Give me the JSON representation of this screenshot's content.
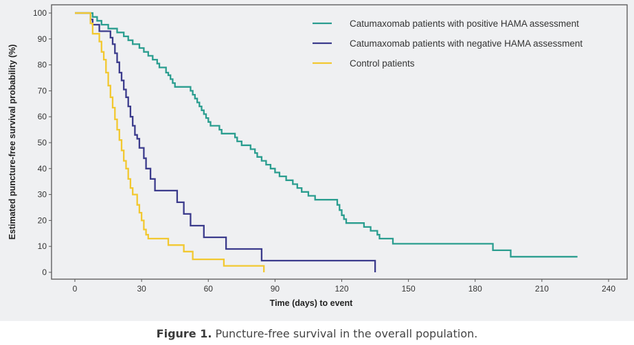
{
  "chart_data": {
    "type": "line",
    "subtype": "kaplan-meier step",
    "title": "",
    "xlabel": "Time (days) to event",
    "ylabel": "Estimated puncture-free survival probability (%)",
    "xlim": [
      0,
      240
    ],
    "ylim": [
      0,
      100
    ],
    "x_ticks": [
      0,
      30,
      60,
      90,
      120,
      150,
      180,
      210,
      240
    ],
    "y_ticks": [
      0,
      10,
      20,
      30,
      40,
      50,
      60,
      70,
      80,
      90,
      100
    ],
    "grid": false,
    "legend_position": "top-right",
    "series": [
      {
        "name": "Catumaxomab patients with positive HAMA assessment",
        "color": "#2a9d8f",
        "steps": [
          [
            0,
            100
          ],
          [
            8,
            100
          ],
          [
            8,
            98.5
          ],
          [
            10,
            97
          ],
          [
            12,
            95.5
          ],
          [
            15,
            94
          ],
          [
            19,
            92.5
          ],
          [
            22,
            91
          ],
          [
            24,
            89.5
          ],
          [
            26,
            88
          ],
          [
            29,
            86.5
          ],
          [
            31,
            85
          ],
          [
            33,
            83.5
          ],
          [
            35,
            82
          ],
          [
            37,
            80.5
          ],
          [
            38,
            79
          ],
          [
            41,
            77
          ],
          [
            42,
            76
          ],
          [
            43,
            74.5
          ],
          [
            44,
            73
          ],
          [
            45,
            71.5
          ],
          [
            50,
            71.5
          ],
          [
            52,
            70
          ],
          [
            53,
            68.5
          ],
          [
            54,
            67
          ],
          [
            55,
            65.5
          ],
          [
            56,
            64
          ],
          [
            57,
            62.5
          ],
          [
            58,
            61
          ],
          [
            59,
            59.5
          ],
          [
            60,
            58
          ],
          [
            61,
            56.5
          ],
          [
            64,
            56.5
          ],
          [
            65,
            55
          ],
          [
            66,
            53.5
          ],
          [
            70,
            53.5
          ],
          [
            72,
            52
          ],
          [
            73,
            50.5
          ],
          [
            75,
            49
          ],
          [
            78,
            49
          ],
          [
            79,
            47.5
          ],
          [
            81,
            46
          ],
          [
            82,
            44.5
          ],
          [
            84,
            43
          ],
          [
            86,
            41.5
          ],
          [
            88,
            40
          ],
          [
            90,
            38.5
          ],
          [
            92,
            37
          ],
          [
            95,
            35.5
          ],
          [
            97,
            35.5
          ],
          [
            98,
            34
          ],
          [
            100,
            32.5
          ],
          [
            102,
            31
          ],
          [
            105,
            29.5
          ],
          [
            108,
            28
          ],
          [
            117,
            28
          ],
          [
            118,
            26
          ],
          [
            119,
            24
          ],
          [
            120,
            22
          ],
          [
            121,
            20.5
          ],
          [
            122,
            19
          ],
          [
            129,
            19
          ],
          [
            130,
            17.5
          ],
          [
            133,
            16
          ],
          [
            136,
            14.5
          ],
          [
            137,
            13
          ],
          [
            142,
            13
          ],
          [
            143,
            11
          ],
          [
            188,
            11
          ],
          [
            188,
            8.5
          ],
          [
            196,
            8.5
          ],
          [
            196,
            6
          ],
          [
            226,
            6
          ]
        ]
      },
      {
        "name": "Catumaxomab patients with negative HAMA assessment",
        "color": "#3b3b8c",
        "steps": [
          [
            0,
            100
          ],
          [
            7,
            100
          ],
          [
            7,
            97.5
          ],
          [
            8,
            95.5
          ],
          [
            11,
            93
          ],
          [
            16,
            93
          ],
          [
            16,
            90.5
          ],
          [
            17,
            88
          ],
          [
            18,
            84.5
          ],
          [
            19,
            81
          ],
          [
            20,
            77
          ],
          [
            21,
            74
          ],
          [
            22,
            70.5
          ],
          [
            23,
            67.5
          ],
          [
            24,
            64
          ],
          [
            25,
            60
          ],
          [
            26,
            56.5
          ],
          [
            27,
            53
          ],
          [
            28,
            51.5
          ],
          [
            29,
            48
          ],
          [
            31,
            44
          ],
          [
            32,
            40
          ],
          [
            34,
            36
          ],
          [
            36,
            31.5
          ],
          [
            46,
            31.5
          ],
          [
            46,
            27
          ],
          [
            49,
            22.5
          ],
          [
            52,
            18
          ],
          [
            58,
            18
          ],
          [
            58,
            13.5
          ],
          [
            68,
            13.5
          ],
          [
            68,
            9
          ],
          [
            84,
            9
          ],
          [
            84,
            4.5
          ],
          [
            135,
            4.5
          ],
          [
            135,
            0
          ]
        ]
      },
      {
        "name": "Control patients",
        "color": "#f2c830",
        "steps": [
          [
            0,
            100
          ],
          [
            7,
            100
          ],
          [
            7,
            96
          ],
          [
            8,
            92
          ],
          [
            11,
            89
          ],
          [
            12,
            85
          ],
          [
            13,
            82
          ],
          [
            14,
            77
          ],
          [
            15,
            72
          ],
          [
            16,
            67.5
          ],
          [
            17,
            63.5
          ],
          [
            18,
            59
          ],
          [
            19,
            55
          ],
          [
            20,
            51
          ],
          [
            21,
            47
          ],
          [
            22,
            43
          ],
          [
            23,
            40
          ],
          [
            24,
            36
          ],
          [
            25,
            32.5
          ],
          [
            26,
            30
          ],
          [
            28,
            26
          ],
          [
            29,
            23
          ],
          [
            30,
            20
          ],
          [
            31,
            16.5
          ],
          [
            32,
            14.5
          ],
          [
            33,
            13
          ],
          [
            42,
            13
          ],
          [
            42,
            10.5
          ],
          [
            49,
            10.5
          ],
          [
            49,
            8
          ],
          [
            53,
            8
          ],
          [
            53,
            5
          ],
          [
            67,
            5
          ],
          [
            67,
            2.5
          ],
          [
            85,
            2.5
          ],
          [
            85,
            0
          ]
        ]
      }
    ]
  },
  "caption": {
    "label": "Figure 1.",
    "text": " Puncture-free survival in the overall population."
  }
}
